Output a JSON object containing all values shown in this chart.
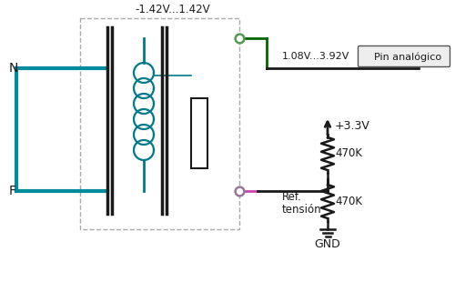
{
  "bg_color": "#ffffff",
  "cyan_color": "#008B9E",
  "teal_color": "#007A8A",
  "green_color": "#006600",
  "pink_color": "#CC44AA",
  "dark_color": "#1a1a1a",
  "dashed_color": "#AAAAAA",
  "node_fill": "#ffffff",
  "node_edge_top": "#559955",
  "node_edge_bot": "#997799",
  "resistor_color": "#1a1a1a",
  "label_N": "N",
  "label_F": "F",
  "label_voltage_top": "-1.42V...1.42V",
  "label_voltage_right": "1.08V...3.92V",
  "label_pin": "Pin analógico",
  "label_ref_line1": "Ref.",
  "label_ref_line2": "tensión",
  "label_3v3": "+3.3V",
  "label_r1": "470K",
  "label_r2": "470K",
  "label_gnd": "GND",
  "figw": 5.0,
  "figh": 3.21,
  "dpi": 100
}
